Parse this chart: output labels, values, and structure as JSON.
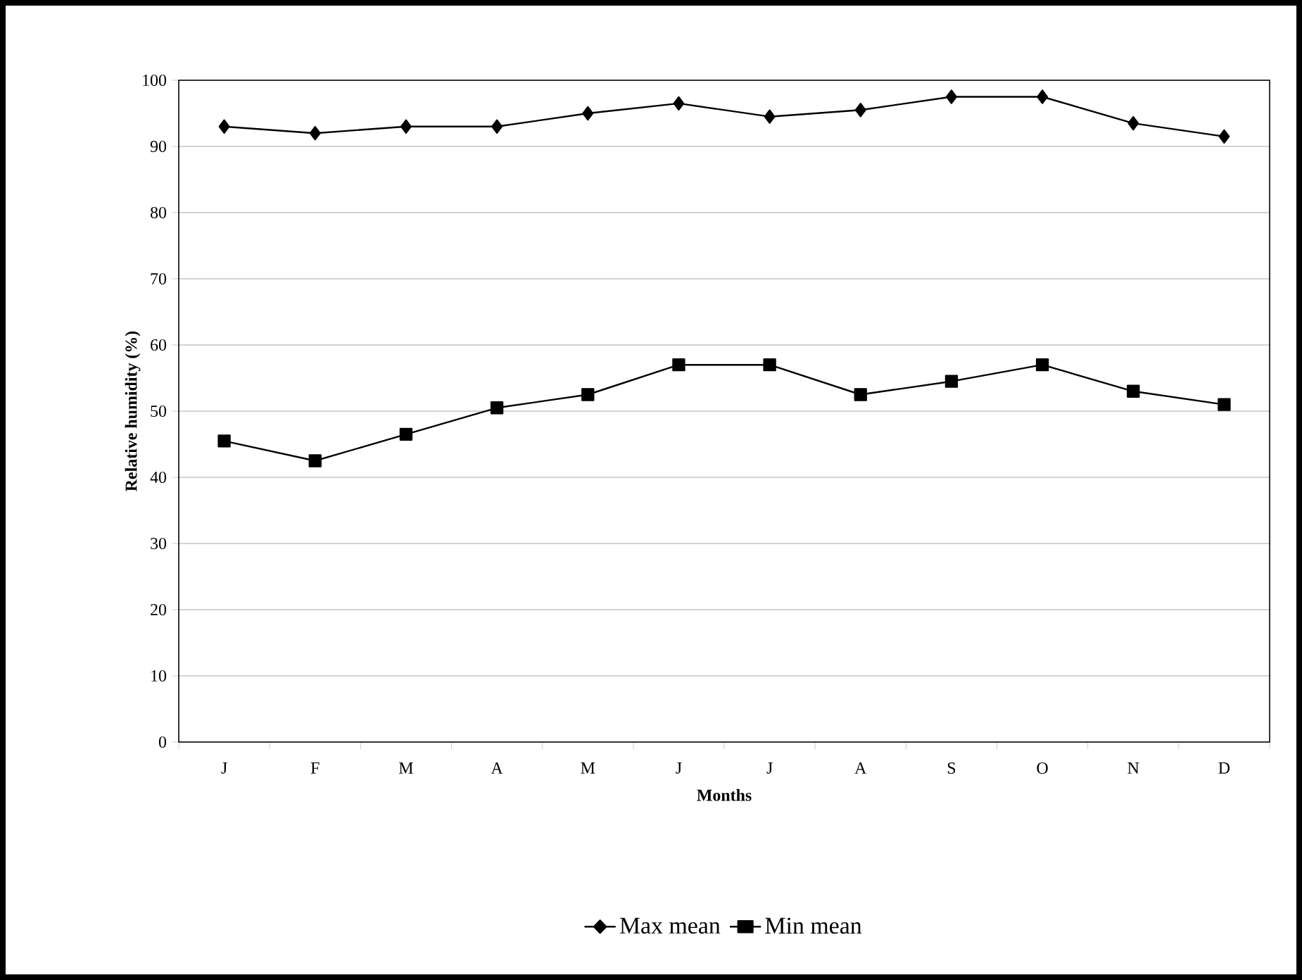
{
  "chart_data": {
    "type": "line",
    "xlabel": "Months",
    "ylabel": "Relative humidity (%)",
    "categories": [
      "J",
      "F",
      "M",
      "A",
      "M",
      "J",
      "J",
      "A",
      "S",
      "O",
      "N",
      "D"
    ],
    "series": [
      {
        "name": "Max mean",
        "color": "#000000",
        "marker": "diamond",
        "values": [
          93,
          92,
          93,
          93,
          95,
          96.5,
          94.5,
          95.5,
          97.5,
          97.5,
          93.5,
          91.5
        ]
      },
      {
        "name": "Min mean",
        "color": "#000000",
        "marker": "square",
        "values": [
          45.5,
          42.5,
          46.5,
          50.5,
          52.5,
          57,
          57,
          52.5,
          54.5,
          57,
          53,
          51
        ]
      }
    ],
    "ylim": [
      0,
      100
    ],
    "yticks": [
      0,
      10,
      20,
      30,
      40,
      50,
      60,
      70,
      80,
      90,
      100
    ],
    "grid": "y",
    "legend": "bottom",
    "line_style": "solid"
  }
}
